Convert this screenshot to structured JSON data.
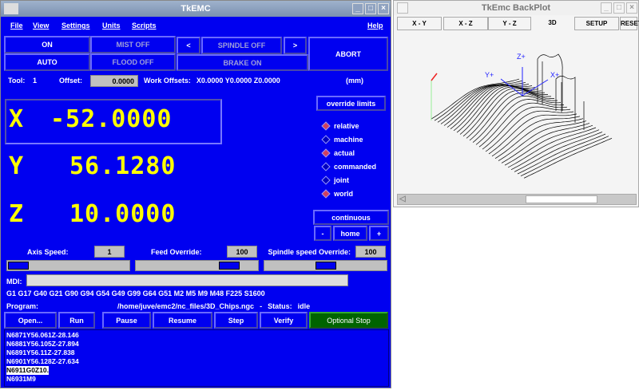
{
  "main_window": {
    "title": "TkEMC"
  },
  "menu": {
    "file": "File",
    "view": "View",
    "settings": "Settings",
    "units": "Units",
    "scripts": "Scripts",
    "help": "Help"
  },
  "controls": {
    "on": "ON",
    "auto": "AUTO",
    "mist": "MIST OFF",
    "flood": "FLOOD OFF",
    "spindle_dec": "<",
    "spindle": "SPINDLE OFF",
    "spindle_inc": ">",
    "brake": "BRAKE ON",
    "abort": "ABORT"
  },
  "tool": {
    "tool_label": "Tool:",
    "tool_value": "1",
    "offset_label": "Offset:",
    "offset_value": "0.0000",
    "work_offsets_label": "Work Offsets:",
    "work_offsets": "X0.0000 Y0.0000 Z0.0000",
    "units": "(mm)"
  },
  "dro": {
    "x_label": "X",
    "x_value": "-52.0000",
    "y_label": "Y",
    "y_value": "56.1280",
    "z_label": "Z",
    "z_value": "10.0000"
  },
  "override_limits": "override limits",
  "display_options": [
    {
      "label": "relative",
      "selected": true
    },
    {
      "label": "machine",
      "selected": false
    },
    {
      "label": "actual",
      "selected": true
    },
    {
      "label": "commanded",
      "selected": false
    },
    {
      "label": "joint",
      "selected": false
    },
    {
      "label": "world",
      "selected": true
    }
  ],
  "jog": {
    "mode": "continuous",
    "minus": "-",
    "home": "home",
    "plus": "+"
  },
  "speeds": {
    "axis_label": "Axis Speed:",
    "axis_value": "1",
    "axis_fraction": 0.0,
    "feed_label": "Feed Override:",
    "feed_value": "100",
    "feed_fraction": 0.82,
    "spindle_label": "Spindle speed Override:",
    "spindle_value": "100",
    "spindle_fraction": 0.5
  },
  "mdi": {
    "label": "MDI:",
    "value": ""
  },
  "gcodes": "G1 G17 G40 G21 G90 G94 G54 G49 G99 G64 G51 M2 M5 M9 M48 F225 S1600",
  "program": {
    "label": "Program:",
    "path": "/home/juve/emc2/nc_files/3D_Chips.ngc",
    "status_sep": "-",
    "status_label": "Status:",
    "status_value": "idle"
  },
  "program_buttons": [
    "Open...",
    "Run",
    "Pause",
    "Resume",
    "Step",
    "Verify",
    "Optional Stop"
  ],
  "program_lines": [
    "N6871Y56.061Z-28.146",
    "N6881Y56.105Z-27.894",
    "N6891Y56.11Z-27.838",
    "N6901Y56.128Z-27.634",
    "N6911G0Z10.",
    "N6931M9"
  ],
  "highlighted_line": 4,
  "backplot": {
    "title": "TkEmc BackPlot",
    "tabs": [
      "X - Y",
      "X - Z",
      "Y - Z",
      "3D",
      "SETUP",
      "RESET"
    ],
    "active_tab": "3D",
    "axis_z": "Z+",
    "axis_y": "Y+",
    "axis_x": "X+"
  },
  "colors": {
    "background": "#0000f0",
    "dro_text": "#ffff00",
    "optional_stop": "#006400"
  }
}
